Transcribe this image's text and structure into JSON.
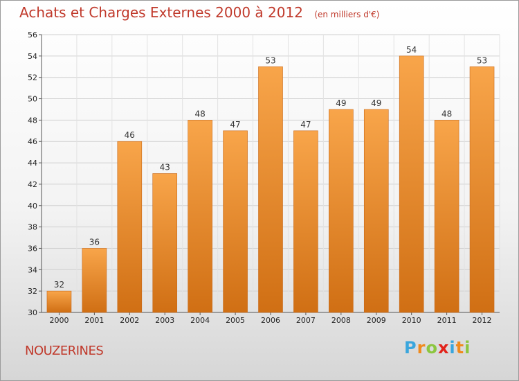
{
  "header": {
    "title": "Achats et Charges Externes 2000 à 2012",
    "subtitle": "(en milliers d'€)"
  },
  "footer": {
    "place": "NOUZERINES",
    "logo_letters": [
      {
        "ch": "P",
        "color": "#3aa6dd"
      },
      {
        "ch": "r",
        "color": "#f08a1c"
      },
      {
        "ch": "o",
        "color": "#8cc63f"
      },
      {
        "ch": "x",
        "color": "#e2231a"
      },
      {
        "ch": "i",
        "color": "#3aa6dd"
      },
      {
        "ch": "t",
        "color": "#f08a1c"
      },
      {
        "ch": "i",
        "color": "#8cc63f"
      }
    ]
  },
  "colors": {
    "title": "#c0392b",
    "bar_top": "#f8a54a",
    "bar_bottom": "#d06f14"
  },
  "chart_data": {
    "type": "bar",
    "title": "Achats et Charges Externes 2000 à 2012",
    "subtitle": "(en milliers d'€)",
    "categories": [
      "2000",
      "2001",
      "2002",
      "2003",
      "2004",
      "2005",
      "2006",
      "2007",
      "2008",
      "2009",
      "2010",
      "2011",
      "2012"
    ],
    "values": [
      32,
      36,
      46,
      43,
      48,
      47,
      53,
      47,
      49,
      49,
      54,
      48,
      53
    ],
    "ylim": [
      30,
      56
    ],
    "yticks": [
      30,
      32,
      34,
      36,
      38,
      40,
      42,
      44,
      46,
      48,
      50,
      52,
      54,
      56
    ],
    "grid": true,
    "xlabel": "",
    "ylabel": ""
  }
}
